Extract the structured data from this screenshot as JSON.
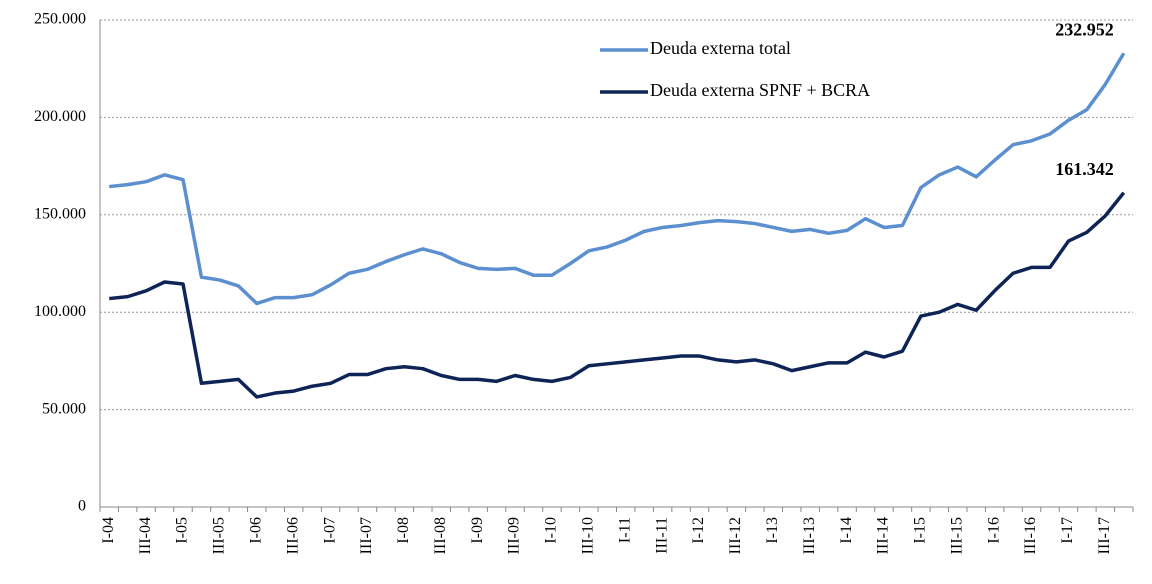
{
  "chart_data": {
    "type": "line",
    "categories": [
      "I-04",
      null,
      "III-04",
      null,
      "I-05",
      null,
      "III-05",
      null,
      "I-06",
      null,
      "III-06",
      null,
      "I-07",
      null,
      "III-07",
      null,
      "I-08",
      null,
      "III-08",
      null,
      "I-09",
      null,
      "III-09",
      null,
      "I-10",
      null,
      "III-10",
      null,
      "I-11",
      null,
      "III-11",
      null,
      "I-12",
      null,
      "III-12",
      null,
      "I-13",
      null,
      "III-13",
      null,
      "I-14",
      null,
      "III-14",
      null,
      "I-15",
      null,
      "III-15",
      null,
      "I-16",
      null,
      "III-16",
      null,
      "I-17",
      null,
      "III-17",
      null
    ],
    "series": [
      {
        "name": "Deuda externa total",
        "color": "#5b8fd0",
        "values": [
          164500,
          165500,
          167000,
          170500,
          168000,
          118000,
          116500,
          113500,
          104500,
          107500,
          107500,
          109000,
          114000,
          120000,
          122000,
          126000,
          129500,
          132500,
          130000,
          125500,
          122500,
          122000,
          122500,
          119000,
          119000,
          125000,
          131500,
          133500,
          137000,
          141500,
          143500,
          144500,
          146000,
          147000,
          146500,
          145500,
          143500,
          141500,
          142500,
          140500,
          142000,
          148000,
          143500,
          144500,
          164000,
          170500,
          174500,
          169500,
          178000,
          186000,
          188000,
          191500,
          198500,
          204000,
          217000,
          232952
        ],
        "value_labels": [
          null,
          null,
          null,
          null,
          null,
          null,
          null,
          null,
          null,
          null,
          null,
          null,
          null,
          null,
          null,
          null,
          null,
          null,
          null,
          null,
          null,
          null,
          null,
          null,
          null,
          null,
          null,
          null,
          null,
          null,
          null,
          null,
          null,
          null,
          null,
          null,
          null,
          null,
          null,
          null,
          null,
          null,
          null,
          null,
          null,
          null,
          null,
          null,
          null,
          null,
          null,
          null,
          null,
          null,
          null,
          "232.952"
        ]
      },
      {
        "name": "Deuda externa SPNF + BCRA",
        "color": "#0f2456",
        "values": [
          107000,
          108000,
          111000,
          115500,
          114500,
          63500,
          64500,
          65500,
          56500,
          58500,
          59500,
          62000,
          63500,
          68000,
          68000,
          71000,
          72000,
          71000,
          67500,
          65500,
          65500,
          64500,
          67500,
          65500,
          64500,
          66500,
          72500,
          73500,
          74500,
          75500,
          76500,
          77500,
          77500,
          75500,
          74500,
          75500,
          73500,
          70000,
          72000,
          74000,
          74000,
          79500,
          77000,
          80000,
          98000,
          100000,
          104000,
          101000,
          111000,
          120000,
          123000,
          123000,
          136500,
          141000,
          149500,
          161342
        ],
        "value_labels": [
          null,
          null,
          null,
          null,
          null,
          null,
          null,
          null,
          null,
          null,
          null,
          null,
          null,
          null,
          null,
          null,
          null,
          null,
          null,
          null,
          null,
          null,
          null,
          null,
          null,
          null,
          null,
          null,
          null,
          null,
          null,
          null,
          null,
          null,
          null,
          null,
          null,
          null,
          null,
          null,
          null,
          null,
          null,
          null,
          null,
          null,
          null,
          null,
          null,
          null,
          null,
          null,
          null,
          null,
          null,
          "161.342"
        ]
      }
    ],
    "ylim": [
      0,
      250000
    ],
    "yticks": [
      0,
      {
        "value": 50000,
        "label": "50.000"
      },
      {
        "value": 100000,
        "label": "100.000"
      },
      {
        "value": 150000,
        "label": "150.000"
      },
      {
        "value": 200000,
        "label": "200.000"
      },
      {
        "value": 250000,
        "label": "250.000"
      }
    ],
    "grid": true,
    "legend": "top-center"
  }
}
